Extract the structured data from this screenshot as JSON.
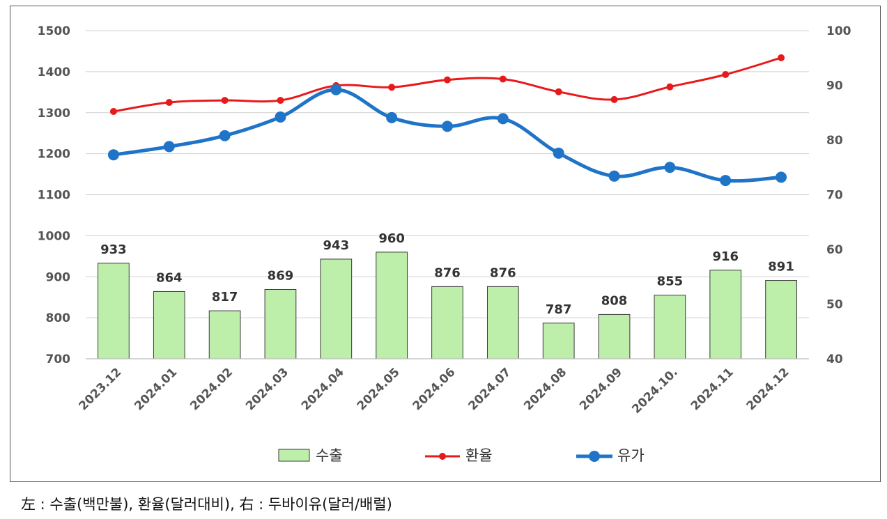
{
  "chart_data": {
    "type": "bar+line",
    "categories": [
      "2023.12",
      "2024.01",
      "2024.02",
      "2024.03",
      "2024.04",
      "2024.05",
      "2024.06",
      "2024.07",
      "2024.08",
      "2024.09",
      "2024.10.",
      "2024.11",
      "2024.12"
    ],
    "series": [
      {
        "name": "수출",
        "type": "bar",
        "axis": "left",
        "color": "#bdeeaa",
        "values": [
          933,
          864,
          817,
          869,
          943,
          960,
          876,
          876,
          787,
          808,
          855,
          916,
          891
        ]
      },
      {
        "name": "환율",
        "type": "line",
        "axis": "left",
        "color": "#e8191b",
        "values": [
          1303,
          1325,
          1330,
          1330,
          1366,
          1362,
          1380,
          1382,
          1351,
          1332,
          1363,
          1393,
          1434
        ]
      },
      {
        "name": "유가",
        "type": "line",
        "axis": "right",
        "color": "#1f74c8",
        "values": [
          77.3,
          78.8,
          80.8,
          84.2,
          89.2,
          84.1,
          82.5,
          83.9,
          77.6,
          73.4,
          75.0,
          72.6,
          73.2
        ]
      }
    ],
    "ylim_left": [
      700,
      1500
    ],
    "yticks_left": [
      700,
      800,
      900,
      1000,
      1100,
      1200,
      1300,
      1400,
      1500
    ],
    "ylim_right": [
      40,
      100
    ],
    "yticks_right": [
      40,
      50,
      60,
      70,
      80,
      90,
      100
    ],
    "legend": [
      "수출",
      "환율",
      "유가"
    ],
    "legend_position": "bottom",
    "grid": true
  },
  "caption": "左 : 수출(백만불), 환율(달러대비), 右 : 두바이유(달러/배럴)"
}
